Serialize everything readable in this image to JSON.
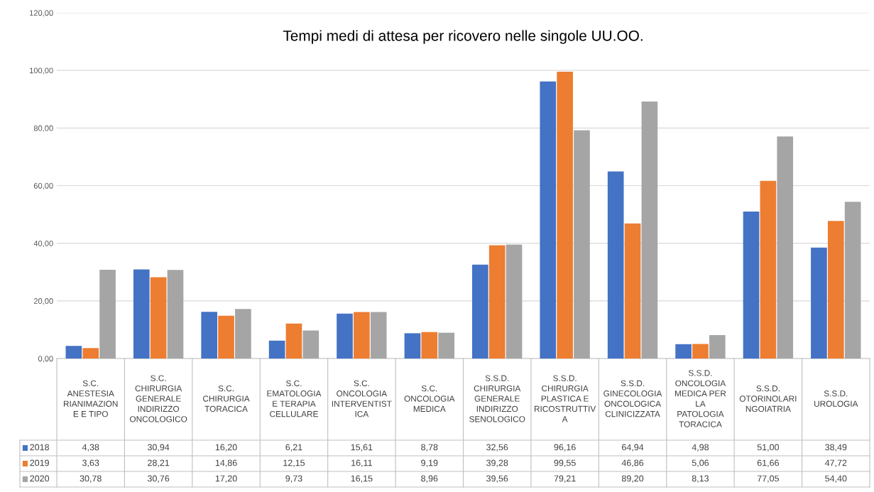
{
  "chart_data": {
    "type": "bar",
    "title": "Tempi medi di attesa per ricovero nelle singole UU.OO.",
    "categories": [
      "S.C.\nANESTESIA\nRIANIMAZION\nE E TIPO",
      "S.C.\nCHIRURGIA\nGENERALE\nINDIRIZZO\nONCOLOGICO",
      "S.C.\nCHIRURGIA\nTORACICA",
      "S.C.\nEMATOLOGIA\nE TERAPIA\nCELLULARE",
      "S.C.\nONCOLOGIA\nINTERVENTIST\nICA",
      "S.C.\nONCOLOGIA\nMEDICA",
      "S.S.D.\nCHIRURGIA\nGENERALE\nINDIRIZZO\nSENOLOGICO",
      "S.S.D.\nCHIRURGIA\nPLASTICA E\nRICOSTRUTTIV\nA",
      "S.S.D.\nGINECOLOGIA\nONCOLOGICA\nCLINICIZZATA",
      "S.S.D.\nONCOLOGIA\nMEDICA PER\nLA\nPATOLOGIA\nTORACICA",
      "S.S.D.\nOTORINOLARI\nNGOIATRIA",
      "S.S.D.\nUROLOGIA"
    ],
    "series": [
      {
        "name": "2018",
        "color": "#4472c4",
        "values": [
          4.38,
          30.94,
          16.2,
          6.21,
          15.61,
          8.78,
          32.56,
          96.16,
          64.94,
          4.98,
          51.0,
          38.49
        ],
        "value_labels": [
          "4,38",
          "30,94",
          "16,20",
          "6,21",
          "15,61",
          "8,78",
          "32,56",
          "96,16",
          "64,94",
          "4,98",
          "51,00",
          "38,49"
        ]
      },
      {
        "name": "2019",
        "color": "#ed7d31",
        "values": [
          3.63,
          28.21,
          14.86,
          12.15,
          16.11,
          9.19,
          39.28,
          99.55,
          46.86,
          5.06,
          61.66,
          47.72
        ],
        "value_labels": [
          "3,63",
          "28,21",
          "14,86",
          "12,15",
          "16,11",
          "9,19",
          "39,28",
          "99,55",
          "46,86",
          "5,06",
          "61,66",
          "47,72"
        ]
      },
      {
        "name": "2020",
        "color": "#a5a5a5",
        "values": [
          30.78,
          30.76,
          17.2,
          9.73,
          16.15,
          8.96,
          39.56,
          79.21,
          89.2,
          8.13,
          77.05,
          54.4
        ],
        "value_labels": [
          "30,78",
          "30,76",
          "17,20",
          "9,73",
          "16,15",
          "8,96",
          "39,56",
          "79,21",
          "89,20",
          "8,13",
          "77,05",
          "54,40"
        ]
      }
    ],
    "ylim": [
      0,
      120
    ],
    "yticks": [
      {
        "value": 0,
        "label": "0,00"
      },
      {
        "value": 20,
        "label": "20,00"
      },
      {
        "value": 40,
        "label": "40,00"
      },
      {
        "value": 60,
        "label": "60,00"
      },
      {
        "value": 80,
        "label": "80,00"
      },
      {
        "value": 100,
        "label": "100,00"
      },
      {
        "value": 120,
        "label": "120,00"
      }
    ],
    "grid": "y",
    "legend": "bottom left"
  }
}
